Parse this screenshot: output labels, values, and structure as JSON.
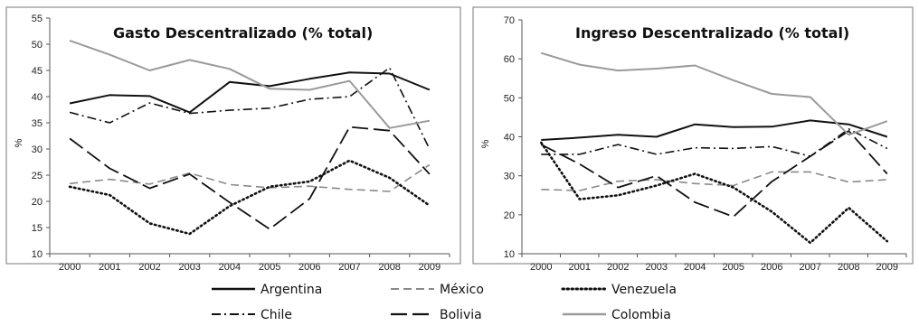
{
  "chart_data": [
    {
      "type": "line",
      "title": "Gasto Descentralizado (% total)",
      "xlabel": "",
      "ylabel": "%",
      "x": [
        "2000",
        "2001",
        "2002",
        "2003",
        "2004",
        "2005",
        "2006",
        "2007",
        "2008",
        "2009"
      ],
      "ylim": [
        10,
        55
      ],
      "yticks": [
        10,
        15,
        20,
        25,
        30,
        35,
        40,
        45,
        50,
        55
      ],
      "grid": false,
      "series": [
        {
          "name": "Argentina",
          "values": [
            38.7,
            40.3,
            40.1,
            37.0,
            42.8,
            42.0,
            43.4,
            44.6,
            44.4,
            41.3
          ]
        },
        {
          "name": "México",
          "values": [
            23.4,
            24.2,
            23.3,
            25.4,
            23.2,
            22.6,
            22.9,
            22.3,
            21.9,
            27.0
          ]
        },
        {
          "name": "Venezuela",
          "values": [
            22.8,
            21.2,
            15.8,
            13.8,
            19.1,
            22.8,
            23.8,
            27.8,
            24.5,
            19.2
          ]
        },
        {
          "name": "Chile",
          "values": [
            37.0,
            35.0,
            38.8,
            36.8,
            37.4,
            37.8,
            39.5,
            40.0,
            45.5,
            30.0
          ]
        },
        {
          "name": "Bolivia",
          "values": [
            32.0,
            26.3,
            22.5,
            25.2,
            19.8,
            14.7,
            20.5,
            34.2,
            33.5,
            25.2
          ]
        },
        {
          "name": "Colombia",
          "values": [
            50.7,
            48.0,
            45.0,
            47.0,
            45.3,
            41.5,
            41.3,
            43.0,
            34.0,
            35.4
          ]
        }
      ]
    },
    {
      "type": "line",
      "title": "Ingreso Descentralizado (% total)",
      "xlabel": "",
      "ylabel": "%",
      "x": [
        "2000",
        "2001",
        "2002",
        "2003",
        "2004",
        "2005",
        "2006",
        "2007",
        "2008",
        "2009"
      ],
      "ylim": [
        10,
        70
      ],
      "yticks": [
        10,
        20,
        30,
        40,
        50,
        60,
        70
      ],
      "grid": false,
      "series": [
        {
          "name": "Argentina",
          "values": [
            39.2,
            39.8,
            40.5,
            40.0,
            43.2,
            42.5,
            42.6,
            44.2,
            43.2,
            40.0
          ]
        },
        {
          "name": "México",
          "values": [
            26.5,
            26.2,
            28.6,
            29.0,
            28.0,
            27.5,
            31.0,
            31.0,
            28.4,
            29.0
          ]
        },
        {
          "name": "Venezuela",
          "values": [
            38.5,
            24.0,
            25.0,
            27.5,
            30.5,
            27.0,
            20.8,
            12.8,
            21.8,
            13.2
          ]
        },
        {
          "name": "Chile",
          "values": [
            35.5,
            35.5,
            38.0,
            35.5,
            37.2,
            37.0,
            37.5,
            35.0,
            42.0,
            37.0
          ]
        },
        {
          "name": "Bolivia",
          "values": [
            38.0,
            33.0,
            27.0,
            30.0,
            23.2,
            19.5,
            28.5,
            35.0,
            41.5,
            30.5
          ]
        },
        {
          "name": "Colombia",
          "values": [
            61.5,
            58.5,
            57.0,
            57.5,
            58.3,
            54.5,
            51.0,
            50.2,
            40.5,
            44.0
          ]
        }
      ]
    }
  ],
  "legend": {
    "placement": "bottom",
    "items": [
      {
        "name": "Argentina",
        "style": "solid",
        "color": "#111111"
      },
      {
        "name": "México",
        "style": "dashed",
        "color": "#8a8a8a"
      },
      {
        "name": "Venezuela",
        "style": "dotted",
        "color": "#111111"
      },
      {
        "name": "Chile",
        "style": "dashdot",
        "color": "#111111"
      },
      {
        "name": "Bolivia",
        "style": "longdash",
        "color": "#111111"
      },
      {
        "name": "Colombia",
        "style": "solid",
        "color": "#9a9a9a"
      }
    ]
  }
}
